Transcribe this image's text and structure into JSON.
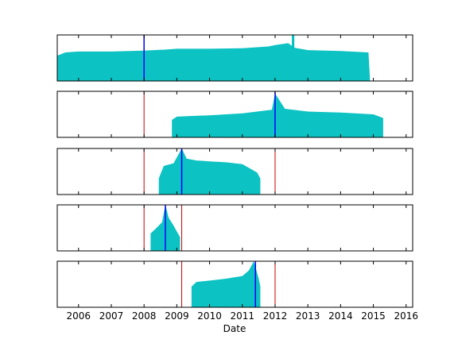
{
  "chart_data": {
    "type": "area",
    "xlabel": "Date",
    "x_ticks": [
      "2006",
      "2007",
      "2008",
      "2009",
      "2010",
      "2011",
      "2012",
      "2013",
      "2014",
      "2015",
      "2016"
    ],
    "xlim": [
      2005.35,
      2016.2
    ],
    "fill_color": "#00bfbf",
    "marker_color": "#0000ff",
    "boundary_color": "#cc0000",
    "panels": [
      {
        "x": [
          2005.35,
          2005.6,
          2006.0,
          2007.0,
          2008.0,
          2008.55,
          2008.6,
          2009.0,
          2010.0,
          2011.0,
          2011.8,
          2012.0,
          2012.4,
          2012.6,
          2013.0,
          2014.0,
          2014.85,
          2014.9
        ],
        "y": [
          0.55,
          0.62,
          0.64,
          0.64,
          0.66,
          0.68,
          0.68,
          0.7,
          0.7,
          0.71,
          0.75,
          0.78,
          0.82,
          0.72,
          0.67,
          0.65,
          0.62,
          0.0
        ],
        "marker": 2008.0,
        "spike": 2012.55,
        "boundaries": []
      },
      {
        "x": [
          2008.85,
          2009.0,
          2010.0,
          2011.0,
          2011.9,
          2012.0,
          2012.3,
          2013.0,
          2014.0,
          2015.0,
          2015.3
        ],
        "y": [
          0.38,
          0.45,
          0.48,
          0.52,
          0.6,
          0.95,
          0.62,
          0.56,
          0.54,
          0.5,
          0.42
        ],
        "marker": 2012.0,
        "spike": null,
        "boundaries": [
          2008.0
        ]
      },
      {
        "x": [
          2008.45,
          2008.6,
          2008.9,
          2009.15,
          2009.3,
          2009.6,
          2010.0,
          2010.5,
          2011.0,
          2011.45,
          2011.55
        ],
        "y": [
          0.35,
          0.62,
          0.68,
          1.0,
          0.78,
          0.74,
          0.72,
          0.7,
          0.66,
          0.48,
          0.35
        ],
        "marker": 2009.15,
        "spike": null,
        "boundaries": [
          2008.0,
          2012.0
        ]
      },
      {
        "x": [
          2008.2,
          2008.35,
          2008.55,
          2008.65,
          2008.75,
          2008.9,
          2009.0,
          2009.1
        ],
        "y": [
          0.38,
          0.48,
          0.62,
          1.0,
          0.72,
          0.55,
          0.42,
          0.3
        ],
        "marker": 2008.65,
        "spike": null,
        "boundaries": [
          2008.0,
          2009.15
        ]
      },
      {
        "x": [
          2009.45,
          2009.6,
          2010.0,
          2010.5,
          2011.0,
          2011.2,
          2011.35,
          2011.5,
          2011.55
        ],
        "y": [
          0.45,
          0.55,
          0.58,
          0.62,
          0.68,
          0.8,
          1.0,
          0.62,
          0.45
        ],
        "marker": 2011.4,
        "spike": null,
        "boundaries": [
          2009.15,
          2012.0
        ]
      }
    ]
  }
}
